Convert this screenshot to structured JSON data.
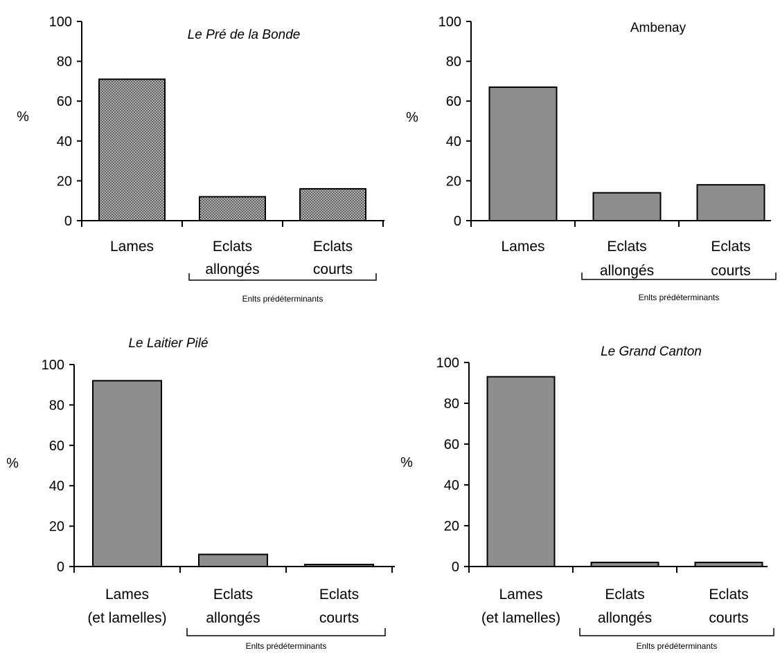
{
  "chart_data": [
    {
      "type": "bar",
      "title": "Le Pré de la Bonde",
      "ylabel": "%",
      "ylim": [
        0,
        100
      ],
      "yticks": [
        "0",
        "20",
        "40",
        "60",
        "80",
        "100"
      ],
      "categories": [
        [
          "Lames"
        ],
        [
          "Eclats",
          "allongés"
        ],
        [
          "Eclats",
          "courts"
        ]
      ],
      "values": [
        71,
        12,
        16
      ],
      "group_label": "Enlts prédéterminants",
      "bar_style": "crosshatch"
    },
    {
      "type": "bar",
      "title": "Ambenay",
      "ylabel": "%",
      "ylim": [
        0,
        100
      ],
      "yticks": [
        "0",
        "20",
        "40",
        "60",
        "80",
        "100"
      ],
      "categories": [
        [
          "Lames"
        ],
        [
          "Eclats",
          "allongés"
        ],
        [
          "Eclats",
          "courts"
        ]
      ],
      "values": [
        67,
        14,
        18
      ],
      "group_label": "Enlts prédéterminants",
      "bar_style": "solid"
    },
    {
      "type": "bar",
      "title": "Le Laitier Pilé",
      "ylabel": "%",
      "ylim": [
        0,
        100
      ],
      "yticks": [
        "0",
        "20",
        "40",
        "60",
        "80",
        "100"
      ],
      "categories": [
        [
          "Lames",
          "(et lamelles)"
        ],
        [
          "Eclats",
          "allongés"
        ],
        [
          "Eclats",
          "courts"
        ]
      ],
      "values": [
        92,
        6,
        1
      ],
      "group_label": "Enlts prédéterminants",
      "bar_style": "solid"
    },
    {
      "type": "bar",
      "title": "Le Grand Canton",
      "ylabel": "%",
      "ylim": [
        0,
        100
      ],
      "yticks": [
        "0",
        "20",
        "40",
        "60",
        "80",
        "100"
      ],
      "categories": [
        [
          "Lames",
          "(et lamelles)"
        ],
        [
          "Eclats",
          "allongés"
        ],
        [
          "Eclats",
          "courts"
        ]
      ],
      "values": [
        93,
        2,
        2
      ],
      "group_label": "Enlts prédéterminants",
      "bar_style": "solid"
    }
  ],
  "colors": {
    "bar_fill": "#8e8e8e",
    "bar_stroke": "#000000",
    "hatch_fill": "#777777"
  }
}
